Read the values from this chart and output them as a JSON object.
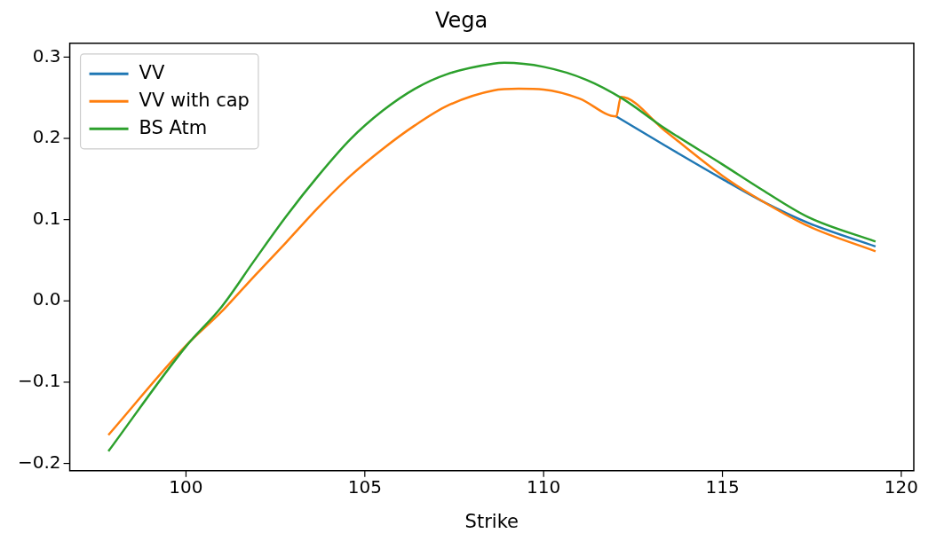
{
  "chart_data": {
    "type": "line",
    "title": "Vega",
    "xlabel": "Strike",
    "xlim": [
      96.75,
      120.35
    ],
    "xticks": [
      100,
      105,
      110,
      115,
      120
    ],
    "ylim": [
      -0.209,
      0.317
    ],
    "yticks": [
      {
        "value": -0.2,
        "label": "−0.2"
      },
      {
        "value": -0.1,
        "label": "−0.1"
      },
      {
        "value": 0,
        "label": "0.0"
      },
      {
        "value": 0.1,
        "label": "0.1"
      },
      {
        "value": 0.2,
        "label": "0.2"
      },
      {
        "value": 0.3,
        "label": "0.3"
      }
    ],
    "grid": false,
    "legend": "top left",
    "marker": "none",
    "line_style": "solid",
    "series": [
      {
        "name": "VV",
        "color": "#1f77b4",
        "x": [
          112.03,
          113.4,
          115,
          116.1,
          117.4,
          119.28
        ],
        "values": [
          0.227,
          0.191,
          0.15,
          0.123,
          0.096,
          0.067
        ]
      },
      {
        "name": "VV with cap",
        "color": "#ff7f0e",
        "x": [
          97.83,
          100,
          101,
          101.9,
          102.8,
          103.7,
          104.6,
          105.5,
          106.4,
          107.3,
          108.6,
          109.3,
          110,
          111,
          112.03,
          112.16,
          113.4,
          115,
          115.8,
          117.4,
          119.28
        ],
        "values": [
          -0.165,
          -0.055,
          -0.013,
          0.03,
          0.072,
          0.115,
          0.154,
          0.187,
          0.216,
          0.24,
          0.259,
          0.261,
          0.26,
          0.249,
          0.227,
          0.251,
          0.209,
          0.154,
          0.131,
          0.092,
          0.061
        ]
      },
      {
        "name": "BS Atm",
        "color": "#2ca02c",
        "x": [
          97.83,
          100,
          101,
          101.9,
          102.8,
          103.7,
          104.6,
          105.5,
          106.4,
          107.3,
          108.6,
          108.9,
          110,
          111.2,
          112.2,
          113.4,
          115,
          116.1,
          117.4,
          119.28
        ],
        "values": [
          -0.185,
          -0.056,
          -0.007,
          0.049,
          0.104,
          0.154,
          0.199,
          0.234,
          0.261,
          0.279,
          0.292,
          0.293,
          0.288,
          0.272,
          0.249,
          0.212,
          0.168,
          0.137,
          0.103,
          0.073
        ]
      }
    ]
  }
}
